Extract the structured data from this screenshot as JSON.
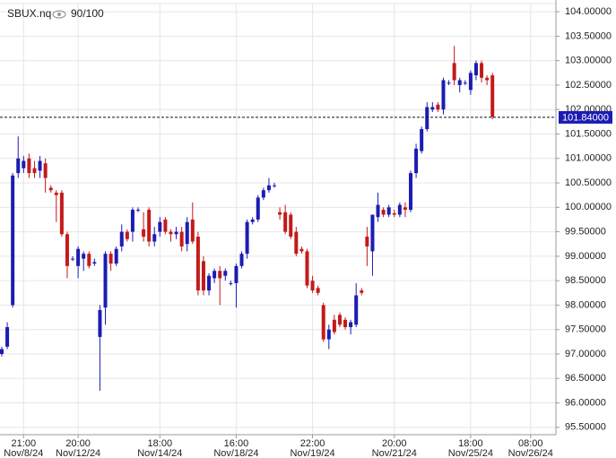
{
  "chart_data": {
    "type": "candlestick",
    "title": "SBUX.nq",
    "counter": "90/100",
    "categories": [
      null,
      null,
      null,
      null,
      {
        "time": "21:00",
        "date": "Nov/8/24"
      },
      null,
      null,
      null,
      null,
      null,
      null,
      null,
      null,
      null,
      {
        "time": "20:00",
        "date": "Nov/12/24"
      },
      null,
      null,
      null,
      null,
      null,
      null,
      null,
      null,
      null,
      null,
      null,
      null,
      null,
      null,
      {
        "time": "18:00",
        "date": "Nov/14/24"
      },
      null,
      null,
      null,
      null,
      null,
      null,
      null,
      null,
      null,
      null,
      null,
      null,
      null,
      {
        "time": "16:00",
        "date": "Nov/18/24"
      },
      null,
      null,
      null,
      null,
      null,
      null,
      null,
      null,
      null,
      null,
      null,
      null,
      null,
      {
        "time": "22:00",
        "date": "Nov/19/24"
      },
      null,
      null,
      null,
      null,
      null,
      null,
      null,
      null,
      null,
      null,
      null,
      null,
      null,
      null,
      {
        "time": "20:00",
        "date": "Nov/21/24"
      },
      null,
      null,
      null,
      null,
      null,
      null,
      null,
      null,
      null,
      null,
      null,
      null,
      null,
      {
        "time": "18:00",
        "date": "Nov/25/24"
      },
      null,
      null,
      null,
      null,
      null,
      null,
      null,
      null,
      null,
      null,
      {
        "time": "08:00",
        "date": "Nov/26/24"
      },
      null,
      null
    ],
    "open": [
      97.0,
      97.15,
      98.0,
      100.7,
      100.8,
      101.0,
      100.8,
      100.75,
      100.9,
      100.4,
      100.3,
      100.3,
      99.45,
      98.95,
      98.8,
      98.95,
      99.05,
      98.85,
      97.35,
      97.95,
      99.05,
      98.85,
      99.2,
      99.5,
      99.5,
      99.95,
      99.55,
      99.95,
      99.3,
      99.5,
      99.75,
      99.5,
      99.45,
      99.5,
      99.25,
      99.75,
      99.4,
      98.9,
      98.3,
      98.55,
      98.7,
      98.6,
      98.45,
      98.45,
      98.8,
      99.05,
      99.7,
      99.75,
      100.2,
      100.35,
      100.45,
      99.9,
      99.9,
      99.85,
      99.5,
      99.15,
      99.1,
      98.5,
      98.35,
      98.0,
      97.3,
      97.7,
      97.8,
      97.7,
      97.55,
      97.6,
      98.3,
      99.4,
      99.1,
      99.8,
      99.95,
      99.85,
      99.88,
      99.85,
      100.0,
      99.95,
      100.7,
      101.15,
      101.6,
      102.0,
      102.1,
      102.0,
      102.55,
      102.95,
      102.5,
      102.55,
      102.4,
      102.7,
      102.95,
      102.65,
      102.7,
      null,
      null,
      null,
      null,
      null,
      null,
      null,
      null,
      null
    ],
    "high": [
      97.15,
      97.65,
      100.7,
      101.45,
      101.05,
      101.1,
      100.95,
      101.05,
      101.0,
      100.45,
      100.35,
      100.35,
      99.5,
      99.0,
      99.2,
      99.1,
      99.1,
      98.95,
      98.0,
      99.1,
      99.1,
      99.2,
      99.65,
      99.55,
      100.0,
      100.0,
      99.9,
      100.0,
      99.6,
      99.8,
      99.8,
      99.55,
      99.6,
      99.6,
      99.8,
      100.1,
      99.5,
      99.0,
      98.65,
      98.75,
      98.8,
      98.75,
      98.5,
      98.85,
      99.1,
      99.75,
      99.8,
      100.25,
      100.4,
      100.6,
      100.5,
      100.0,
      100.05,
      99.9,
      99.6,
      99.2,
      99.15,
      98.6,
      98.4,
      98.05,
      97.6,
      97.8,
      97.85,
      97.75,
      97.7,
      98.45,
      98.35,
      99.6,
      99.85,
      100.3,
      100.0,
      100.05,
      99.95,
      100.1,
      100.1,
      100.75,
      101.3,
      101.65,
      102.15,
      102.15,
      102.15,
      102.65,
      102.6,
      103.3,
      102.65,
      102.6,
      102.8,
      103.0,
      103.0,
      102.7,
      102.75,
      null,
      null,
      null,
      null,
      null,
      null,
      null,
      null,
      null
    ],
    "low": [
      96.95,
      97.1,
      97.95,
      100.6,
      100.7,
      100.6,
      100.6,
      100.6,
      100.3,
      100.3,
      99.7,
      99.4,
      98.55,
      98.9,
      98.55,
      98.7,
      98.75,
      98.8,
      96.25,
      97.6,
      98.7,
      98.8,
      99.1,
      99.3,
      99.3,
      99.9,
      99.3,
      99.2,
      99.2,
      99.4,
      99.45,
      99.3,
      99.35,
      99.1,
      99.1,
      99.25,
      98.2,
      98.2,
      98.2,
      98.45,
      98.0,
      98.5,
      98.4,
      97.95,
      98.75,
      98.95,
      99.65,
      99.7,
      100.15,
      100.3,
      100.4,
      99.75,
      99.45,
      99.35,
      99.0,
      99.05,
      98.35,
      98.25,
      98.2,
      97.25,
      97.1,
      97.4,
      97.55,
      97.5,
      97.4,
      97.55,
      98.2,
      98.8,
      98.6,
      99.7,
      99.8,
      99.8,
      99.8,
      99.8,
      99.8,
      99.9,
      100.6,
      101.1,
      101.55,
      101.95,
      101.95,
      101.9,
      102.5,
      102.5,
      102.35,
      102.5,
      102.3,
      102.6,
      102.55,
      102.5,
      101.8,
      null,
      null,
      null,
      null,
      null,
      null,
      null,
      null,
      null
    ],
    "close": [
      97.1,
      97.55,
      100.65,
      101.0,
      100.95,
      100.7,
      100.7,
      100.95,
      100.6,
      100.35,
      100.25,
      99.45,
      98.8,
      98.95,
      99.15,
      99.05,
      98.8,
      98.88,
      97.9,
      99.05,
      98.85,
      99.15,
      99.5,
      99.35,
      99.95,
      99.95,
      99.4,
      99.3,
      99.45,
      99.7,
      99.5,
      99.45,
      99.5,
      99.2,
      99.7,
      99.3,
      98.3,
      98.3,
      98.6,
      98.7,
      98.55,
      98.7,
      98.45,
      98.8,
      99.05,
      99.7,
      99.75,
      100.2,
      100.35,
      100.45,
      100.45,
      99.85,
      99.5,
      99.4,
      99.05,
      99.1,
      98.4,
      98.3,
      98.25,
      97.3,
      97.5,
      97.45,
      97.6,
      97.55,
      97.65,
      98.2,
      98.25,
      99.2,
      99.85,
      100.05,
      99.85,
      100.0,
      99.85,
      100.05,
      99.95,
      100.7,
      101.2,
      101.6,
      102.05,
      102.05,
      102.0,
      102.6,
      102.55,
      102.6,
      102.6,
      102.55,
      102.75,
      102.95,
      102.65,
      102.6,
      101.85,
      null,
      null,
      null,
      null,
      null,
      null,
      null,
      null,
      null
    ],
    "up_color": "#1c1cb4",
    "down_color": "#c41a1a",
    "ylim": [
      95.35,
      104.24
    ],
    "yticks": [
      {
        "value": 95.5,
        "label": "95.50000"
      },
      {
        "value": 96.0,
        "label": "96.00000"
      },
      {
        "value": 96.5,
        "label": "96.50000"
      },
      {
        "value": 97.0,
        "label": "97.00000"
      },
      {
        "value": 97.5,
        "label": "97.50000"
      },
      {
        "value": 98.0,
        "label": "98.00000"
      },
      {
        "value": 98.5,
        "label": "98.50000"
      },
      {
        "value": 99.0,
        "label": "99.00000"
      },
      {
        "value": 99.5,
        "label": "99.50000"
      },
      {
        "value": 100.0,
        "label": "100.00000"
      },
      {
        "value": 100.5,
        "label": "100.50000"
      },
      {
        "value": 101.0,
        "label": "101.00000"
      },
      {
        "value": 101.5,
        "label": "101.50000"
      },
      {
        "value": 102.0,
        "label": "102.00000"
      },
      {
        "value": 102.5,
        "label": "102.50000"
      },
      {
        "value": 103.0,
        "label": "103.00000"
      },
      {
        "value": 103.5,
        "label": "103.50000"
      },
      {
        "value": 104.0,
        "label": "104.00000"
      }
    ],
    "last_price": {
      "value": 101.84,
      "label": "101.84000"
    },
    "grid": true
  }
}
